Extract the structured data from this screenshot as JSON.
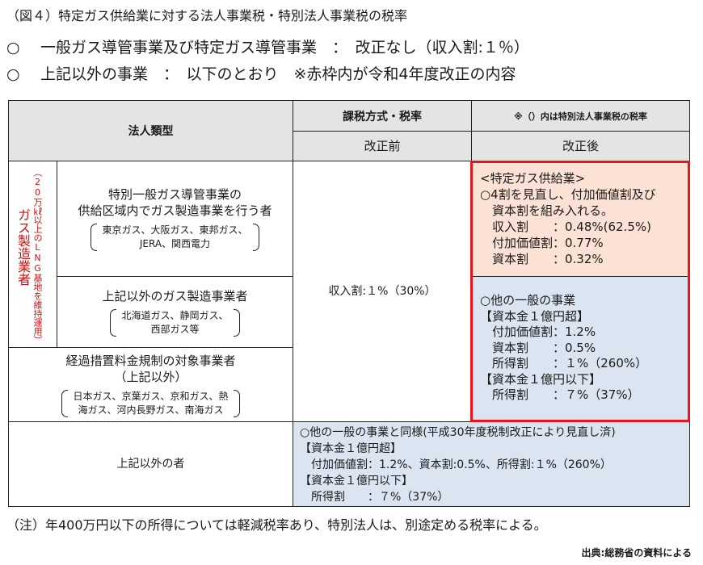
{
  "title": "（図４）特定ガス供給業に対する法人事業税・特別法人事業税の税率",
  "bullet_mark": "○",
  "summary": {
    "line1": "一般ガス導管事業及び特定ガス導管事業　：　改正なし（収入割:１％）",
    "line2": "上記以外の事業　：　以下のとおり　※赤枠内が令和4年度改正の内容"
  },
  "table": {
    "header_category": "法人類型",
    "header_method": "課税方式・税率",
    "header_note": "※（）内は特別法人事業税の税率",
    "header_before": "改正前",
    "header_after": "改正後",
    "side_label": "ガス製造業者",
    "side_note": "（20万㎘以上のLNG基地を維持運用）",
    "row1": {
      "name_line1": "特別一般ガス導管事業の",
      "name_line2": "供給区域内でガス製造事業を行う者",
      "ex_line1": "東京ガス、大阪ガス、東邦ガス、",
      "ex_line2": "JERA、関西電力"
    },
    "row2": {
      "name": "上記以外のガス製造事業者",
      "ex_line1": "北海道ガス、静岡ガス、",
      "ex_line2": "西部ガス等"
    },
    "row3": {
      "name_line1": "経過措置料金規制の対象事業者",
      "name_line2": "（上記以外）",
      "ex_line1": "日本ガス、京葉ガス、京和ガス、熱",
      "ex_line2": "海ガス、河内長野ガス、南海ガス"
    },
    "row4": {
      "name": "上記以外の者"
    },
    "before_value": "収入割:１%（30%）",
    "after_special": [
      "<特定ガス供給業>",
      "○4割を見直し、付加価値割及び",
      "　資本割を組み入れる。",
      "　収入割　　：0.48%(62.5%)",
      "　付加価値割：0.77%",
      "　資本割　　：0.32%"
    ],
    "after_general": [
      "○他の一般の事業",
      "【資本金１億円超】",
      "　付加価値割：1.2%",
      "　資本割　　：0.5%",
      "　所得割　　：１%（260%）",
      "【資本金１億円以下】",
      "　所得割　　：７%（37%）"
    ],
    "other_text": [
      "○他の一般の事業と同様(平成30年度税制改正により見直し済)",
      "【資本金１億円超】",
      "　付加価値割：1.2%、資本割:0.5%、所得割:１%（260%）",
      "【資本金１億円以下】",
      "　所得割　　：７%（37%）"
    ]
  },
  "note": "（注）年400万円以下の所得については軽減税率あり、特別法人は、別途定める税率による。",
  "source": "出典:総務省の資料による",
  "colors": {
    "highlight_border": "#e8161c",
    "header_gray": "#e4e4e4",
    "general_blue": "#dbe4f1",
    "special_orange": "#fbe2d4",
    "side_label_red": "#d01010"
  }
}
